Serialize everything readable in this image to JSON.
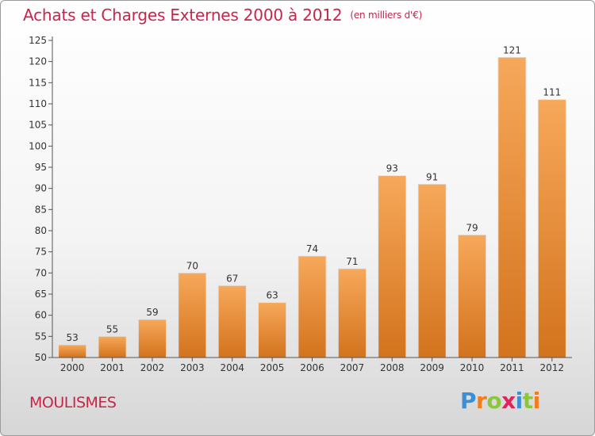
{
  "title": "Achats et Charges Externes 2000 à 2012",
  "unit": "(en milliers d'€)",
  "city": "MOULISMES",
  "logo": {
    "letters": [
      "P",
      "r",
      "o",
      "x",
      "i",
      "t",
      "i"
    ],
    "colors": [
      "#3b8fd6",
      "#f07d1e",
      "#8cc63f",
      "#e0245e",
      "#3b8fd6",
      "#8cc63f",
      "#f07d1e"
    ]
  },
  "colors": {
    "bar_light": "#f7a85a",
    "bar_dark": "#d3731d",
    "title": "#c8254a"
  },
  "chart_data": {
    "type": "bar",
    "categories": [
      "2000",
      "2001",
      "2002",
      "2003",
      "2004",
      "2005",
      "2006",
      "2007",
      "2008",
      "2009",
      "2010",
      "2011",
      "2012"
    ],
    "values": [
      53,
      55,
      59,
      70,
      67,
      63,
      74,
      71,
      93,
      91,
      79,
      121,
      111
    ],
    "ylim": [
      50,
      125
    ],
    "yticks": [
      50,
      55,
      60,
      65,
      70,
      75,
      80,
      85,
      90,
      95,
      100,
      105,
      110,
      115,
      120,
      125
    ],
    "grid": false,
    "legend": "none"
  }
}
